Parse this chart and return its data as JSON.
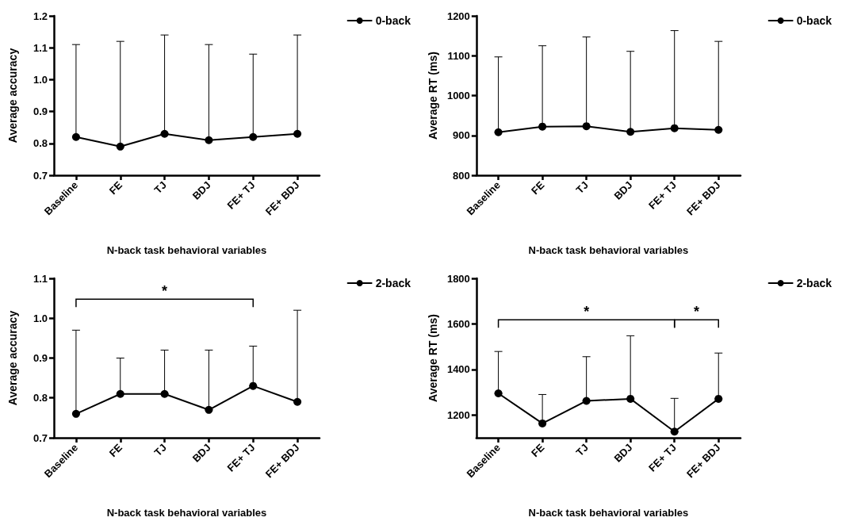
{
  "chart_data": [
    {
      "type": "line",
      "xlabel": "N-back task behavioral variables",
      "ylabel": "Average accuracy",
      "categories": [
        "Baseline",
        "FE",
        "TJ",
        "BDJ",
        "FE+ TJ",
        "FE+ BDJ"
      ],
      "series": [
        {
          "name": "0-back",
          "color": "#000000",
          "values": [
            0.82,
            0.79,
            0.83,
            0.81,
            0.82,
            0.83
          ],
          "errors": [
            [
              0.82,
              1.11
            ],
            [
              0.79,
              1.12
            ],
            [
              0.83,
              1.14
            ],
            [
              0.81,
              1.11
            ],
            [
              0.82,
              1.08
            ],
            [
              0.83,
              1.14
            ]
          ]
        }
      ],
      "ylim": [
        0.7,
        1.2
      ],
      "yticks": [
        0.7,
        0.8,
        0.9,
        {
          "value": 1.0,
          "label": "1.0"
        },
        1.1,
        1.2
      ],
      "grid": false,
      "legend": "top right",
      "marker": "circle",
      "line_style": "solid"
    },
    {
      "type": "line",
      "xlabel": "N-back task behavioral variables",
      "ylabel": "Average RT (ms)",
      "categories": [
        "Baseline",
        "FE",
        "TJ",
        "BDJ",
        "FE+ TJ",
        "FE+ BDJ"
      ],
      "series": [
        {
          "name": "0-back",
          "color": "#000000",
          "values": [
            908,
            922,
            923,
            909,
            918,
            914
          ],
          "errors": [
            [
              908,
              1097
            ],
            [
              922,
              1125
            ],
            [
              923,
              1147
            ],
            [
              909,
              1111
            ],
            [
              918,
              1163
            ],
            [
              914,
              1136
            ]
          ]
        }
      ],
      "ylim": [
        800,
        1200
      ],
      "yticks": [
        800,
        900,
        1000,
        1100,
        1200
      ],
      "grid": false,
      "legend": "top right",
      "marker": "circle",
      "line_style": "solid"
    },
    {
      "type": "line",
      "xlabel": "N-back task behavioral variables",
      "ylabel": "Average accuracy",
      "categories": [
        "Baseline",
        "FE",
        "TJ",
        "BDJ",
        "FE+ TJ",
        "FE+ BDJ"
      ],
      "series": [
        {
          "name": "2-back",
          "color": "#000000",
          "values": [
            0.76,
            0.81,
            0.81,
            0.77,
            0.83,
            0.79
          ],
          "errors": [
            [
              0.76,
              0.97
            ],
            [
              0.81,
              0.9
            ],
            [
              0.81,
              0.92
            ],
            [
              0.77,
              0.92
            ],
            [
              0.83,
              0.93
            ],
            [
              0.79,
              1.02
            ]
          ]
        }
      ],
      "ylim": [
        0.7,
        1.1
      ],
      "yticks": [
        0.7,
        0.8,
        0.9,
        {
          "value": 1.0,
          "label": "1.0"
        },
        1.1
      ],
      "grid": false,
      "legend": "top right",
      "marker": "circle",
      "line_style": "solid",
      "annotations": [
        "*"
      ]
    },
    {
      "type": "line",
      "xlabel": "N-back task behavioral variables",
      "ylabel": "Average RT (ms)",
      "categories": [
        "Baseline",
        "FE",
        "TJ",
        "BDJ",
        "FE+ TJ",
        "FE+ BDJ"
      ],
      "series": [
        {
          "name": "2-back",
          "color": "#000000",
          "values": [
            1295,
            1163,
            1262,
            1271,
            1127,
            1271
          ],
          "errors": [
            [
              1295,
              1479
            ],
            [
              1163,
              1290
            ],
            [
              1262,
              1456
            ],
            [
              1271,
              1548
            ],
            [
              1127,
              1273
            ],
            [
              1271,
              1472
            ]
          ]
        }
      ],
      "ylim": [
        1100,
        1800
      ],
      "yticks": [
        1200,
        1400,
        1600,
        1800
      ],
      "grid": false,
      "legend": "top right",
      "marker": "circle",
      "line_style": "solid",
      "annotations": [
        "*",
        "*"
      ]
    }
  ]
}
